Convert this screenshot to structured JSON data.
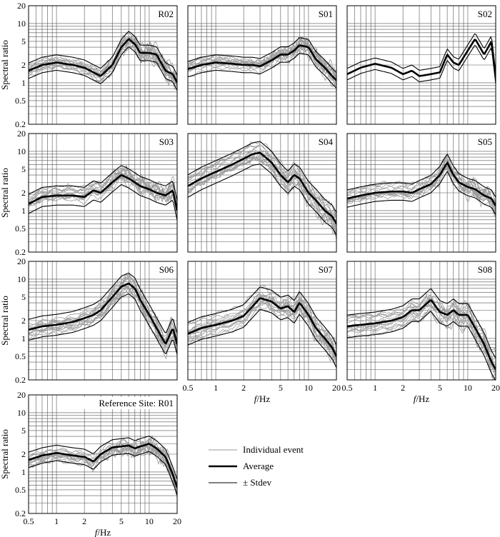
{
  "chart_data": {
    "type": "line",
    "ylabel": "Spectral ratio",
    "xlabel_var": "f",
    "xlabel_unit": "/Hz",
    "xscale": "log",
    "yscale": "log",
    "xlim": [
      0.5,
      20
    ],
    "ylim": [
      0.2,
      20
    ],
    "x_ticks": [
      0.5,
      1,
      2,
      5,
      10,
      20
    ],
    "x_tick_labels": [
      "0.5",
      "1",
      "2",
      "5",
      "10",
      "20"
    ],
    "y_ticks": [
      0.2,
      0.5,
      1,
      2,
      5,
      10,
      20
    ],
    "y_tick_labels": [
      "0.2",
      "0.5",
      "1",
      "2",
      "5",
      "10",
      "20"
    ],
    "legend": {
      "position": "bottom-right",
      "entries": [
        "Individual event",
        "Average",
        "± Stdev"
      ]
    },
    "freq": [
      0.5,
      0.7,
      1,
      1.5,
      2,
      2.5,
      3,
      4,
      5,
      6,
      7,
      8,
      10,
      12,
      15,
      18,
      20
    ],
    "panels": [
      {
        "site": "R02",
        "stdev_factor": 1.35,
        "n_events": 14,
        "average": [
          1.6,
          2.0,
          2.2,
          2.0,
          1.8,
          1.5,
          1.3,
          2.0,
          4.0,
          5.5,
          4.5,
          3.2,
          3.2,
          3.0,
          1.6,
          1.4,
          1.0
        ]
      },
      {
        "site": "S01",
        "stdev_factor": 1.35,
        "n_events": 14,
        "average": [
          1.7,
          2.0,
          2.2,
          2.1,
          2.0,
          2.0,
          1.9,
          2.4,
          3.0,
          3.0,
          3.5,
          4.3,
          4.0,
          2.5,
          1.8,
          1.3,
          1.1
        ]
      },
      {
        "site": "S02",
        "stdev_factor": 1.25,
        "n_events": 0,
        "average": [
          1.4,
          1.8,
          2.1,
          1.8,
          1.4,
          1.6,
          1.3,
          1.4,
          1.5,
          3.0,
          2.2,
          2.0,
          3.5,
          5.5,
          3.0,
          5.0,
          1.2
        ]
      },
      {
        "site": "S03",
        "stdev_factor": 1.45,
        "n_events": 14,
        "average": [
          1.3,
          1.7,
          1.8,
          1.8,
          1.7,
          2.2,
          2.0,
          3.0,
          4.0,
          3.5,
          3.0,
          2.6,
          2.3,
          2.0,
          1.8,
          2.2,
          1.0
        ]
      },
      {
        "site": "S04",
        "stdev_factor": 1.55,
        "n_events": 14,
        "average": [
          2.6,
          3.5,
          4.5,
          6.0,
          7.5,
          9.0,
          9.5,
          6.5,
          4.0,
          3.0,
          4.0,
          3.5,
          2.0,
          1.5,
          1.0,
          0.8,
          0.6
        ]
      },
      {
        "site": "S05",
        "stdev_factor": 1.4,
        "n_events": 14,
        "average": [
          1.6,
          1.8,
          2.0,
          2.1,
          2.1,
          2.0,
          2.3,
          2.8,
          4.0,
          6.5,
          4.0,
          3.0,
          2.5,
          2.3,
          1.8,
          1.6,
          1.2
        ]
      },
      {
        "site": "S06",
        "stdev_factor": 1.5,
        "n_events": 14,
        "average": [
          1.4,
          1.6,
          1.7,
          1.9,
          2.2,
          2.5,
          3.0,
          5.0,
          7.5,
          8.5,
          7.0,
          4.5,
          2.5,
          1.5,
          0.8,
          1.5,
          0.8
        ]
      },
      {
        "site": "S07",
        "stdev_factor": 1.55,
        "n_events": 14,
        "average": [
          1.2,
          1.5,
          1.7,
          2.0,
          2.4,
          3.5,
          4.8,
          4.2,
          3.2,
          3.5,
          2.8,
          4.0,
          2.5,
          1.5,
          1.0,
          0.7,
          0.5
        ]
      },
      {
        "site": "S08",
        "stdev_factor": 1.55,
        "n_events": 14,
        "average": [
          1.6,
          1.7,
          1.8,
          2.0,
          2.3,
          3.0,
          3.0,
          4.5,
          2.8,
          2.5,
          3.0,
          2.5,
          2.5,
          1.5,
          0.8,
          0.4,
          0.3
        ]
      },
      {
        "site": "Reference Site: R01",
        "stdev_factor": 1.35,
        "n_events": 14,
        "average": [
          1.6,
          1.9,
          2.1,
          1.9,
          1.8,
          1.5,
          2.0,
          2.6,
          2.7,
          2.8,
          2.5,
          2.7,
          3.0,
          2.5,
          1.8,
          0.9,
          0.55
        ]
      }
    ]
  }
}
